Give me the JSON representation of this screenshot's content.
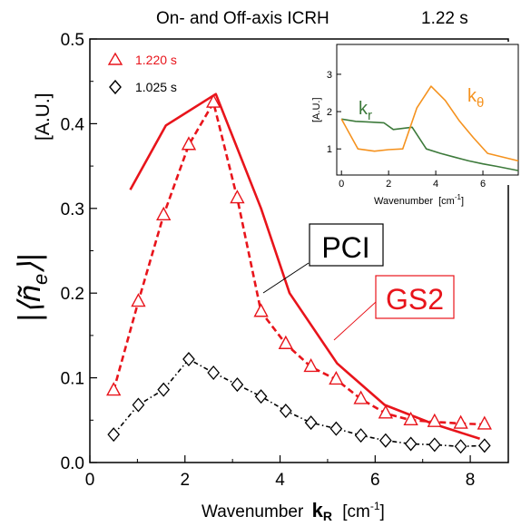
{
  "chart_data": [
    {
      "type": "line",
      "title": "On- and Off-axis ICRH",
      "title_time": "1.22 s",
      "xlabel": "Wavenumber",
      "xlabel_symbol": "k",
      "xlabel_subscript": "R",
      "xlabel_unit": "[cm",
      "xlabel_unit_exp": "-1",
      "xlabel_unit_close": "]",
      "ylabel_symbol": "|⟨ñ",
      "ylabel_subscript": "e",
      "ylabel_close": "⟩|",
      "ylabel_unit": "[A.U.]",
      "xlim": [
        0,
        8.8
      ],
      "ylim": [
        0,
        0.5
      ],
      "xticks": [
        0,
        2,
        4,
        6,
        8
      ],
      "yticks": [
        0.0,
        0.1,
        0.2,
        0.3,
        0.4,
        0.5
      ],
      "ytick_labels": [
        "0.0",
        "0.1",
        "0.2",
        "0.3",
        "0.4",
        "0.5"
      ],
      "grid": false,
      "legend_position": "top-left",
      "series": [
        {
          "name": "1.220 s",
          "color": "#e8141b",
          "style": "dashed",
          "marker": "triangle",
          "x": [
            0.5,
            1.02,
            1.55,
            2.08,
            2.6,
            3.1,
            3.6,
            4.12,
            4.65,
            5.18,
            5.7,
            6.22,
            6.75,
            7.25,
            7.8,
            8.3
          ],
          "y": [
            0.085,
            0.19,
            0.292,
            0.375,
            0.425,
            0.312,
            0.178,
            0.14,
            0.113,
            0.098,
            0.075,
            0.058,
            0.05,
            0.048,
            0.046,
            0.045
          ]
        },
        {
          "name": "1.025 s",
          "color": "#000000",
          "style": "dashdot",
          "marker": "diamond",
          "x": [
            0.5,
            1.02,
            1.55,
            2.08,
            2.6,
            3.1,
            3.6,
            4.12,
            4.65,
            5.18,
            5.7,
            6.22,
            6.75,
            7.25,
            7.8,
            8.3
          ],
          "y": [
            0.033,
            0.068,
            0.086,
            0.122,
            0.106,
            0.092,
            0.078,
            0.061,
            0.047,
            0.04,
            0.032,
            0.026,
            0.022,
            0.021,
            0.019,
            0.02
          ]
        },
        {
          "name": "GS2",
          "color": "#e8141b",
          "style": "solid",
          "marker": "none",
          "x": [
            0.85,
            1.6,
            2.65,
            3.6,
            4.2,
            5.2,
            6.2,
            7.2,
            8.2
          ],
          "y": [
            0.322,
            0.398,
            0.435,
            0.3,
            0.2,
            0.117,
            0.068,
            0.046,
            0.028
          ]
        }
      ],
      "annotations": [
        {
          "text": "PCI",
          "color": "#000000"
        },
        {
          "text": "GS2",
          "color": "#e8141b"
        }
      ]
    },
    {
      "type": "line",
      "title": "",
      "xlabel": "Wavenumber",
      "xlabel_unit": "[cm",
      "xlabel_unit_exp": "-1",
      "xlabel_unit_close": "]",
      "ylabel": "[A.U.]",
      "xlim": [
        -0.2,
        7.5
      ],
      "ylim": [
        0.3,
        3.8
      ],
      "xticks": [
        0,
        2,
        4,
        6
      ],
      "yticks": [
        1,
        2,
        3
      ],
      "grid": false,
      "series": [
        {
          "name": "k",
          "name_subscript": "r",
          "color": "#3d7a3b",
          "x": [
            0,
            0.6,
            1.2,
            1.8,
            2.2,
            2.6,
            3.0,
            3.6,
            4.2,
            4.8,
            5.4,
            6.0,
            6.6,
            7.5
          ],
          "y": [
            1.8,
            1.74,
            1.72,
            1.7,
            1.52,
            1.55,
            1.58,
            1.0,
            0.88,
            0.78,
            0.68,
            0.6,
            0.53,
            0.42
          ]
        },
        {
          "name": "k",
          "name_subscript": "θ",
          "color": "#f5921e",
          "x": [
            0,
            0.7,
            1.4,
            2.0,
            2.6,
            3.2,
            3.8,
            4.4,
            5.0,
            5.6,
            6.2,
            7.5
          ],
          "y": [
            1.8,
            1.0,
            0.94,
            0.98,
            1.0,
            2.1,
            2.68,
            2.3,
            1.75,
            1.3,
            0.88,
            0.68
          ]
        }
      ]
    }
  ]
}
